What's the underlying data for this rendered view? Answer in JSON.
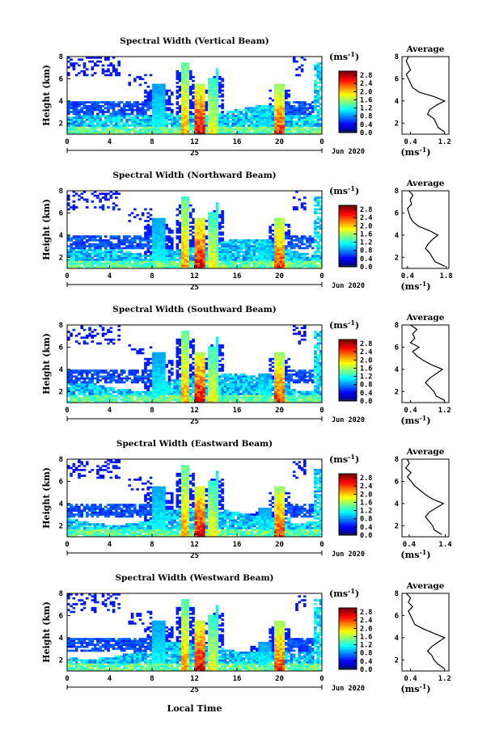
{
  "figure": {
    "xlabel_bottom": "Local Time",
    "date_label": "Jun 2020",
    "day_label": "25",
    "colorbar_unit": "(ms",
    "colorbar_unit_sup": "-1",
    "colorbar_unit_close": ")",
    "avg_title": "Average",
    "avg_xunit": "(ms",
    "height_label": "Height (km)"
  },
  "chart_data": [
    {
      "type": "heatmap",
      "title": "Spectral Width (Vertical Beam)",
      "x_ticks": [
        "0",
        "4",
        "8",
        "12",
        "16",
        "20",
        "0"
      ],
      "y_ticks": [
        "2",
        "4",
        "6",
        "8"
      ],
      "ylabel": "Height (km)",
      "colorbar_ticks": [
        "0.0",
        "0.4",
        "0.8",
        "1.2",
        "1.6",
        "2.0",
        "2.4",
        "2.8"
      ],
      "colorbar_range": [
        0,
        3.0
      ],
      "avg_x_ticks": [
        "0.4",
        "1.2"
      ],
      "avg_xlim": [
        0.2,
        1.3
      ],
      "avg_profile": {
        "height": [
          1.2,
          1.6,
          2.0,
          2.4,
          2.8,
          3.2,
          3.6,
          4.0,
          4.4,
          4.8,
          5.2,
          5.6,
          6.0,
          6.4,
          6.8,
          7.2,
          7.6,
          8.0
        ],
        "width": [
          1.2,
          1.05,
          1.0,
          0.95,
          0.8,
          0.85,
          1.0,
          1.2,
          0.95,
          0.6,
          0.45,
          0.4,
          0.35,
          0.3,
          0.4,
          0.35,
          0.3,
          0.35
        ]
      }
    },
    {
      "type": "heatmap",
      "title": "Spectral Width (Northward Beam)",
      "x_ticks": [
        "0",
        "4",
        "8",
        "12",
        "16",
        "20",
        "0"
      ],
      "y_ticks": [
        "2",
        "4",
        "6",
        "8"
      ],
      "ylabel": "Height (km)",
      "colorbar_ticks": [
        "0.0",
        "0.4",
        "0.8",
        "1.2",
        "1.6",
        "2.0",
        "2.4",
        "2.8"
      ],
      "colorbar_range": [
        0,
        3.0
      ],
      "avg_x_ticks": [
        "0.4",
        "1.8"
      ],
      "avg_xlim": [
        0.2,
        1.9
      ],
      "avg_profile": {
        "height": [
          1.2,
          1.6,
          2.0,
          2.4,
          2.8,
          3.2,
          3.6,
          4.0,
          4.4,
          4.8,
          5.2,
          5.6,
          6.0,
          6.4,
          6.8,
          7.2,
          7.6,
          8.0
        ],
        "width": [
          1.75,
          1.4,
          1.3,
          1.2,
          1.05,
          1.15,
          1.3,
          1.5,
          1.2,
          0.8,
          0.6,
          0.5,
          0.45,
          0.4,
          0.55,
          0.5,
          0.6,
          0.45
        ]
      }
    },
    {
      "type": "heatmap",
      "title": "Spectral Width (Southward Beam)",
      "x_ticks": [
        "0",
        "4",
        "8",
        "12",
        "16",
        "20",
        "0"
      ],
      "y_ticks": [
        "2",
        "4",
        "6",
        "8"
      ],
      "ylabel": "Height (km)",
      "colorbar_ticks": [
        "0.0",
        "0.4",
        "0.8",
        "1.2",
        "1.6",
        "2.0",
        "2.4",
        "2.8"
      ],
      "colorbar_range": [
        0,
        3.0
      ],
      "avg_x_ticks": [
        "0.4",
        "1.2"
      ],
      "avg_xlim": [
        0.2,
        1.3
      ],
      "avg_profile": {
        "height": [
          1.2,
          1.6,
          2.0,
          2.4,
          2.8,
          3.2,
          3.6,
          4.0,
          4.4,
          4.8,
          5.2,
          5.6,
          6.0,
          6.4,
          6.8,
          7.2,
          7.6,
          8.0
        ],
        "width": [
          1.2,
          1.0,
          0.95,
          0.85,
          0.75,
          0.85,
          1.0,
          1.15,
          0.9,
          0.7,
          0.55,
          0.45,
          0.6,
          0.4,
          0.5,
          0.45,
          0.55,
          0.4
        ]
      }
    },
    {
      "type": "heatmap",
      "title": "Spectral Width (Eastward Beam)",
      "x_ticks": [
        "0",
        "4",
        "8",
        "12",
        "16",
        "20",
        "0"
      ],
      "y_ticks": [
        "2",
        "4",
        "6",
        "8"
      ],
      "ylabel": "Height (km)",
      "colorbar_ticks": [
        "0.0",
        "0.4",
        "0.8",
        "1.2",
        "1.6",
        "2.0",
        "2.4",
        "2.8"
      ],
      "colorbar_range": [
        0,
        3.0
      ],
      "avg_x_ticks": [
        "0.4",
        "1.4"
      ],
      "avg_xlim": [
        0.2,
        1.5
      ],
      "avg_profile": {
        "height": [
          1.2,
          1.6,
          2.0,
          2.4,
          2.8,
          3.2,
          3.6,
          4.0,
          4.4,
          4.8,
          5.2,
          5.6,
          6.0,
          6.4,
          6.8,
          7.2,
          7.6,
          8.0
        ],
        "width": [
          1.3,
          1.1,
          1.05,
          0.95,
          0.85,
          0.95,
          1.15,
          1.35,
          1.05,
          0.85,
          0.7,
          0.55,
          0.45,
          0.35,
          0.45,
          0.3,
          0.4,
          0.35
        ]
      }
    },
    {
      "type": "heatmap",
      "title": "Spectral Width (Westward Beam)",
      "x_ticks": [
        "0",
        "4",
        "8",
        "12",
        "16",
        "20",
        "0"
      ],
      "y_ticks": [
        "2",
        "4",
        "6",
        "8"
      ],
      "ylabel": "Height (km)",
      "colorbar_ticks": [
        "0.0",
        "0.4",
        "0.8",
        "1.2",
        "1.6",
        "2.0",
        "2.4",
        "2.8"
      ],
      "colorbar_range": [
        0,
        3.0
      ],
      "avg_x_ticks": [
        "0.4",
        "1.2"
      ],
      "avg_xlim": [
        0.2,
        1.3
      ],
      "avg_profile": {
        "height": [
          1.2,
          1.6,
          2.0,
          2.4,
          2.8,
          3.2,
          3.6,
          4.0,
          4.4,
          4.8,
          5.2,
          5.6,
          6.0,
          6.4,
          6.8,
          7.2,
          7.6,
          8.0
        ],
        "width": [
          1.2,
          1.05,
          0.95,
          0.9,
          0.8,
          0.9,
          1.05,
          1.2,
          0.95,
          0.7,
          0.5,
          0.45,
          0.4,
          0.35,
          0.45,
          0.35,
          0.4,
          0.3
        ]
      }
    }
  ]
}
